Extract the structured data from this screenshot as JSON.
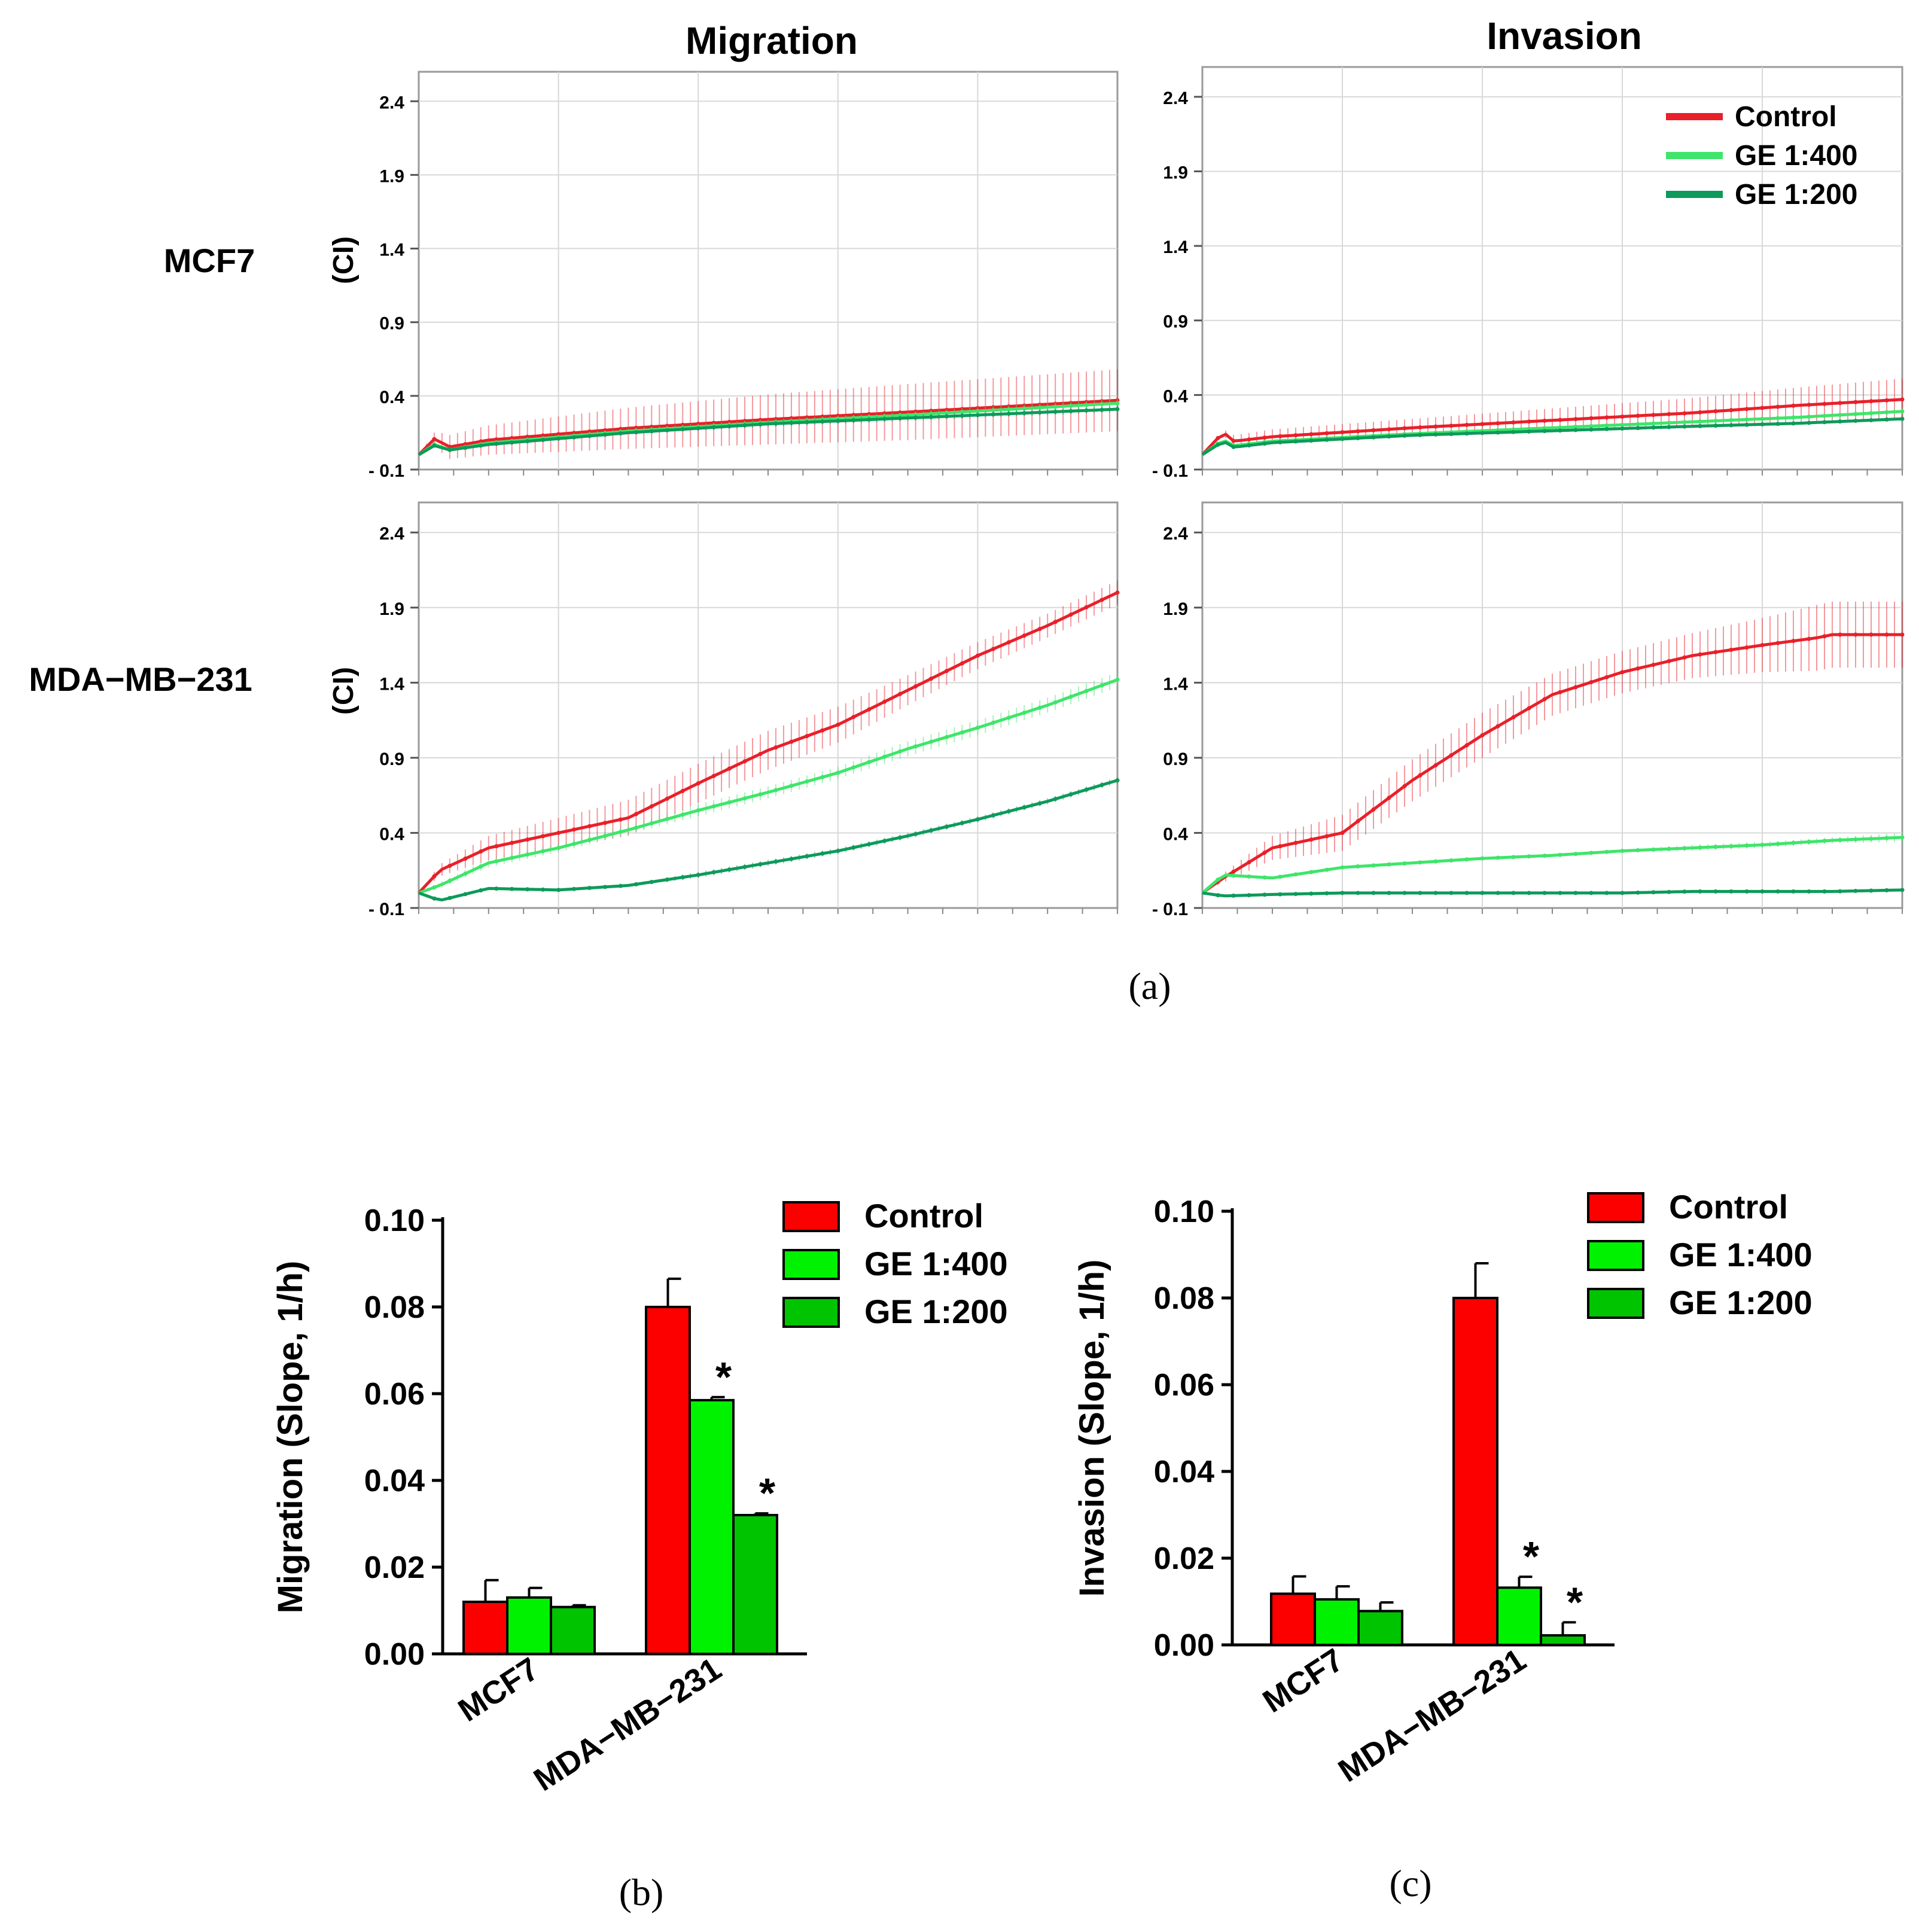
{
  "figure": {
    "panel_labels": [
      "(a)",
      "(b)",
      "(c)"
    ],
    "column_titles": [
      "Migration",
      "Invasion"
    ],
    "row_labels": [
      "MCF7",
      "MDA−MB−231"
    ],
    "ci_axis_label": "(CI)"
  },
  "chart_data": [
    {
      "id": "a-migration-mcf7",
      "type": "line",
      "title": "Migration",
      "row": "MCF7",
      "ylabel": "(CI)",
      "ylim": [
        -0.1,
        2.6
      ],
      "yticks": [
        "2.4",
        "1.9",
        "1.4",
        "0.9",
        "0.4",
        "- 0.1"
      ],
      "ytick_values": [
        2.4,
        1.9,
        1.4,
        0.9,
        0.4,
        -0.1
      ],
      "xlim": [
        0,
        1
      ],
      "grid": true,
      "error_bars": true,
      "series": [
        {
          "name": "Control",
          "color": "#e8202a",
          "x": [
            0,
            0.025,
            0.04,
            0.1,
            0.3,
            0.5,
            0.7,
            0.85,
            1.0
          ],
          "y": [
            0.0,
            0.12,
            0.05,
            0.1,
            0.18,
            0.24,
            0.29,
            0.33,
            0.37
          ],
          "err": [
            0.0,
            0.05,
            0.08,
            0.1,
            0.14,
            0.17,
            0.19,
            0.2,
            0.21
          ]
        },
        {
          "name": "GE 1:400",
          "color": "#3fe56a",
          "x": [
            0,
            0.025,
            0.04,
            0.1,
            0.3,
            0.5,
            0.7,
            0.85,
            1.0
          ],
          "y": [
            0.0,
            0.08,
            0.03,
            0.08,
            0.16,
            0.22,
            0.27,
            0.31,
            0.35
          ],
          "err": [
            0.0,
            0.01,
            0.01,
            0.01,
            0.02,
            0.02,
            0.02,
            0.03,
            0.03
          ]
        },
        {
          "name": "GE 1:200",
          "color": "#0d9a5a",
          "x": [
            0,
            0.025,
            0.04,
            0.1,
            0.3,
            0.5,
            0.7,
            0.85,
            1.0
          ],
          "y": [
            0.0,
            0.07,
            0.03,
            0.07,
            0.15,
            0.21,
            0.25,
            0.28,
            0.31
          ],
          "err": [
            0.0,
            0.01,
            0.01,
            0.01,
            0.01,
            0.02,
            0.02,
            0.02,
            0.02
          ]
        }
      ]
    },
    {
      "id": "a-invasion-mcf7",
      "type": "line",
      "title": "Invasion",
      "row": "MCF7",
      "ylabel": "",
      "ylim": [
        -0.1,
        2.6
      ],
      "yticks": [
        "2.4",
        "1.9",
        "1.4",
        "0.9",
        "0.4",
        "- 0.1"
      ],
      "ytick_values": [
        2.4,
        1.9,
        1.4,
        0.9,
        0.4,
        -0.1
      ],
      "xlim": [
        0,
        1
      ],
      "grid": true,
      "error_bars": true,
      "legend": {
        "position": "top-right",
        "entries": [
          "Control",
          "GE 1:400",
          "GE 1:200"
        ]
      },
      "series": [
        {
          "name": "Control",
          "color": "#e8202a",
          "x": [
            0,
            0.03,
            0.045,
            0.1,
            0.3,
            0.5,
            0.7,
            0.85,
            1.0
          ],
          "y": [
            0.0,
            0.15,
            0.09,
            0.12,
            0.18,
            0.23,
            0.28,
            0.33,
            0.37
          ],
          "err": [
            0.0,
            0.02,
            0.04,
            0.05,
            0.06,
            0.08,
            0.1,
            0.12,
            0.14
          ]
        },
        {
          "name": "GE 1:400",
          "color": "#3fe56a",
          "x": [
            0,
            0.03,
            0.045,
            0.1,
            0.3,
            0.5,
            0.7,
            0.85,
            1.0
          ],
          "y": [
            0.0,
            0.1,
            0.06,
            0.09,
            0.14,
            0.18,
            0.22,
            0.25,
            0.29
          ],
          "err": [
            0.0,
            0.01,
            0.01,
            0.01,
            0.01,
            0.01,
            0.01,
            0.01,
            0.02
          ]
        },
        {
          "name": "GE 1:200",
          "color": "#0d9a5a",
          "x": [
            0,
            0.03,
            0.045,
            0.1,
            0.3,
            0.5,
            0.7,
            0.85,
            1.0
          ],
          "y": [
            0.0,
            0.09,
            0.05,
            0.08,
            0.13,
            0.16,
            0.19,
            0.21,
            0.24
          ],
          "err": [
            0.0,
            0.01,
            0.01,
            0.01,
            0.01,
            0.01,
            0.01,
            0.01,
            0.01
          ]
        }
      ]
    },
    {
      "id": "a-migration-mda",
      "type": "line",
      "title": "Migration",
      "row": "MDA−MB−231",
      "ylabel": "(CI)",
      "ylim": [
        -0.1,
        2.6
      ],
      "yticks": [
        "2.4",
        "1.9",
        "1.4",
        "0.9",
        "0.4",
        "- 0.1"
      ],
      "ytick_values": [
        2.4,
        1.9,
        1.4,
        0.9,
        0.4,
        -0.1
      ],
      "xlim": [
        0,
        1
      ],
      "grid": true,
      "error_bars": true,
      "series": [
        {
          "name": "Control",
          "color": "#e8202a",
          "x": [
            0,
            0.03,
            0.1,
            0.2,
            0.3,
            0.4,
            0.5,
            0.6,
            0.7,
            0.8,
            0.9,
            1.0
          ],
          "y": [
            0.0,
            0.15,
            0.3,
            0.4,
            0.5,
            0.73,
            0.95,
            1.12,
            1.35,
            1.58,
            1.78,
            2.0
          ],
          "err": [
            0.0,
            0.04,
            0.08,
            0.1,
            0.12,
            0.13,
            0.13,
            0.12,
            0.1,
            0.09,
            0.08,
            0.08
          ]
        },
        {
          "name": "GE 1:400",
          "color": "#3fe56a",
          "x": [
            0,
            0.03,
            0.1,
            0.2,
            0.3,
            0.4,
            0.5,
            0.6,
            0.7,
            0.8,
            0.9,
            1.0
          ],
          "y": [
            0.0,
            0.05,
            0.2,
            0.3,
            0.42,
            0.55,
            0.67,
            0.8,
            0.96,
            1.1,
            1.25,
            1.42
          ],
          "err": [
            0.0,
            0.02,
            0.03,
            0.03,
            0.03,
            0.04,
            0.04,
            0.04,
            0.05,
            0.05,
            0.05,
            0.05
          ]
        },
        {
          "name": "GE 1:200",
          "color": "#0d9a5a",
          "x": [
            0,
            0.03,
            0.1,
            0.2,
            0.3,
            0.4,
            0.5,
            0.6,
            0.7,
            0.8,
            0.9,
            1.0
          ],
          "y": [
            0.0,
            -0.05,
            0.03,
            0.02,
            0.05,
            0.12,
            0.2,
            0.28,
            0.38,
            0.49,
            0.61,
            0.75
          ],
          "err": [
            0.0,
            0.01,
            0.01,
            0.01,
            0.01,
            0.02,
            0.02,
            0.02,
            0.02,
            0.02,
            0.02,
            0.02
          ]
        }
      ]
    },
    {
      "id": "a-invasion-mda",
      "type": "line",
      "title": "Invasion",
      "row": "MDA−MB−231",
      "ylabel": "",
      "ylim": [
        -0.1,
        2.6
      ],
      "yticks": [
        "2.4",
        "1.9",
        "1.4",
        "0.9",
        "0.4",
        "- 0.1"
      ],
      "ytick_values": [
        2.4,
        1.9,
        1.4,
        0.9,
        0.4,
        -0.1
      ],
      "xlim": [
        0,
        1
      ],
      "grid": true,
      "error_bars": true,
      "series": [
        {
          "name": "Control",
          "color": "#e8202a",
          "x": [
            0,
            0.03,
            0.1,
            0.2,
            0.3,
            0.4,
            0.5,
            0.6,
            0.7,
            0.8,
            0.88,
            0.9,
            1.0
          ],
          "y": [
            0.0,
            0.1,
            0.3,
            0.4,
            0.75,
            1.05,
            1.32,
            1.47,
            1.58,
            1.65,
            1.7,
            1.72,
            1.72
          ],
          "err": [
            0.0,
            0.03,
            0.08,
            0.12,
            0.14,
            0.15,
            0.14,
            0.14,
            0.15,
            0.18,
            0.22,
            0.22,
            0.22
          ]
        },
        {
          "name": "GE 1:400",
          "color": "#3fe56a",
          "x": [
            0,
            0.03,
            0.1,
            0.2,
            0.3,
            0.4,
            0.5,
            0.6,
            0.7,
            0.8,
            0.9,
            1.0
          ],
          "y": [
            0.0,
            0.12,
            0.1,
            0.17,
            0.2,
            0.23,
            0.25,
            0.28,
            0.3,
            0.32,
            0.35,
            0.37
          ],
          "err": [
            0.0,
            0.01,
            0.01,
            0.01,
            0.01,
            0.01,
            0.01,
            0.01,
            0.02,
            0.02,
            0.02,
            0.03
          ]
        },
        {
          "name": "GE 1:200",
          "color": "#0d9a5a",
          "x": [
            0,
            0.03,
            0.1,
            0.2,
            0.3,
            0.4,
            0.5,
            0.6,
            0.7,
            0.8,
            0.9,
            1.0
          ],
          "y": [
            0.0,
            -0.02,
            -0.01,
            0.0,
            0.0,
            0.0,
            0.0,
            0.0,
            0.01,
            0.01,
            0.01,
            0.02
          ],
          "err": [
            0.0,
            0.01,
            0.01,
            0.01,
            0.01,
            0.01,
            0.01,
            0.01,
            0.01,
            0.01,
            0.01,
            0.01
          ]
        }
      ]
    },
    {
      "id": "b",
      "type": "bar",
      "panel": "(b)",
      "ylabel": "Migration  (Slope,  1/h)",
      "ylim": [
        0,
        0.1
      ],
      "yticks": [
        "0.00",
        "0.02",
        "0.04",
        "0.06",
        "0.08",
        "0.10"
      ],
      "ytick_values": [
        0.0,
        0.02,
        0.04,
        0.06,
        0.08,
        0.1
      ],
      "categories": [
        "MCF7",
        "MDA−MB−231"
      ],
      "legend": {
        "position": "top-right",
        "entries": [
          "Control",
          "GE 1:400",
          "GE 1:200"
        ]
      },
      "series": [
        {
          "name": "Control",
          "color": "#fc0000",
          "values": [
            0.012,
            0.08
          ],
          "errors": [
            0.005,
            0.0065
          ],
          "significance": [
            "",
            ""
          ]
        },
        {
          "name": "GE 1:400",
          "color": "#00f200",
          "values": [
            0.013,
            0.0585
          ],
          "errors": [
            0.0022,
            0.0007
          ],
          "significance": [
            "",
            "*"
          ]
        },
        {
          "name": "GE 1:200",
          "color": "#00c400",
          "values": [
            0.0108,
            0.032
          ],
          "errors": [
            0.0004,
            0.0004
          ],
          "significance": [
            "",
            "*"
          ]
        }
      ]
    },
    {
      "id": "c",
      "type": "bar",
      "panel": "(c)",
      "ylabel": "Invasion (Slope,  1/h)",
      "ylim": [
        0,
        0.1
      ],
      "yticks": [
        "0.00",
        "0.02",
        "0.04",
        "0.06",
        "0.08",
        "0.10"
      ],
      "ytick_values": [
        0.0,
        0.02,
        0.04,
        0.06,
        0.08,
        0.1
      ],
      "categories": [
        "MCF7",
        "MDA−MB−231"
      ],
      "legend": {
        "position": "top-right",
        "entries": [
          "Control",
          "GE 1:400",
          "GE 1:200"
        ]
      },
      "series": [
        {
          "name": "Control",
          "color": "#fc0000",
          "values": [
            0.0118,
            0.08
          ],
          "errors": [
            0.004,
            0.008
          ],
          "significance": [
            "",
            ""
          ]
        },
        {
          "name": "GE 1:400",
          "color": "#00f200",
          "values": [
            0.0105,
            0.0132
          ],
          "errors": [
            0.003,
            0.0025
          ],
          "significance": [
            "",
            "*"
          ]
        },
        {
          "name": "GE 1:200",
          "color": "#00c400",
          "values": [
            0.0078,
            0.0022
          ],
          "errors": [
            0.002,
            0.003
          ],
          "significance": [
            "",
            "*"
          ]
        }
      ]
    }
  ]
}
